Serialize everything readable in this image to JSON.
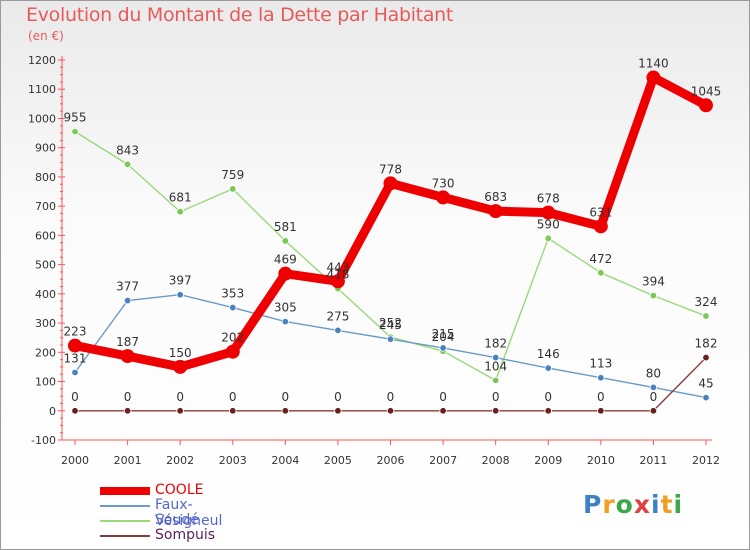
{
  "header": {
    "title": "Evolution du Montant de la Dette par Habitant",
    "subtitle": "(en €)"
  },
  "brand": {
    "letters": [
      "P",
      "r",
      "o",
      "x",
      "i",
      "t",
      "i"
    ],
    "colors": [
      "#3b82c4",
      "#f0a020",
      "#3aa845",
      "#e04040",
      "#3b82c4",
      "#f0a020",
      "#3aa845"
    ]
  },
  "chart_data": {
    "type": "line",
    "title": "Evolution du Montant de la Dette par Habitant",
    "subtitle": "(en €)",
    "x": [
      "2000",
      "2001",
      "2002",
      "2003",
      "2004",
      "2005",
      "2006",
      "2007",
      "2008",
      "2009",
      "2010",
      "2011",
      "2012"
    ],
    "ylim": [
      -100,
      1200
    ],
    "yticks": [
      -100,
      0,
      100,
      200,
      300,
      400,
      500,
      600,
      700,
      800,
      900,
      1000,
      1100,
      1200
    ],
    "grid": false,
    "legend_position": "bottom-left",
    "series": [
      {
        "name": "COOLE",
        "color": "#ee0000",
        "marker": "#ee0000",
        "emphasis": true,
        "values": [
          223,
          187,
          150,
          202,
          469,
          443,
          778,
          730,
          683,
          678,
          631,
          1140,
          1045
        ],
        "labels": [
          "223",
          "187",
          "150",
          "202",
          "469",
          "443",
          "778",
          "730",
          "683",
          "678",
          "631",
          "1140",
          "1045"
        ]
      },
      {
        "name": "Faux-Vésigneul",
        "color": "#6a9ac9",
        "marker": "#4a82c0",
        "emphasis": false,
        "values": [
          131,
          377,
          397,
          353,
          305,
          275,
          245,
          215,
          182,
          146,
          113,
          80,
          45
        ],
        "labels": [
          "131",
          "377",
          "397",
          "353",
          "305",
          "275",
          "245",
          "215",
          "182",
          "146",
          "113",
          "80",
          "45"
        ]
      },
      {
        "name": "Soudé",
        "color": "#9ad87a",
        "marker": "#7ac855",
        "emphasis": false,
        "values": [
          955,
          843,
          681,
          759,
          581,
          418,
          252,
          204,
          104,
          590,
          472,
          394,
          324
        ],
        "labels": [
          "955",
          "843",
          "681",
          "759",
          "581",
          "418",
          "252",
          "204",
          "104",
          "590",
          "472",
          "394",
          "324"
        ]
      },
      {
        "name": "Sompuis",
        "color": "#8a3a3a",
        "marker": "#6a2020",
        "emphasis": false,
        "values": [
          0,
          0,
          0,
          0,
          0,
          0,
          0,
          0,
          0,
          0,
          0,
          0,
          182
        ],
        "labels": [
          "0",
          "0",
          "0",
          "0",
          "0",
          "0",
          "0",
          "0",
          "0",
          "0",
          "0",
          "0",
          "182"
        ]
      }
    ]
  }
}
